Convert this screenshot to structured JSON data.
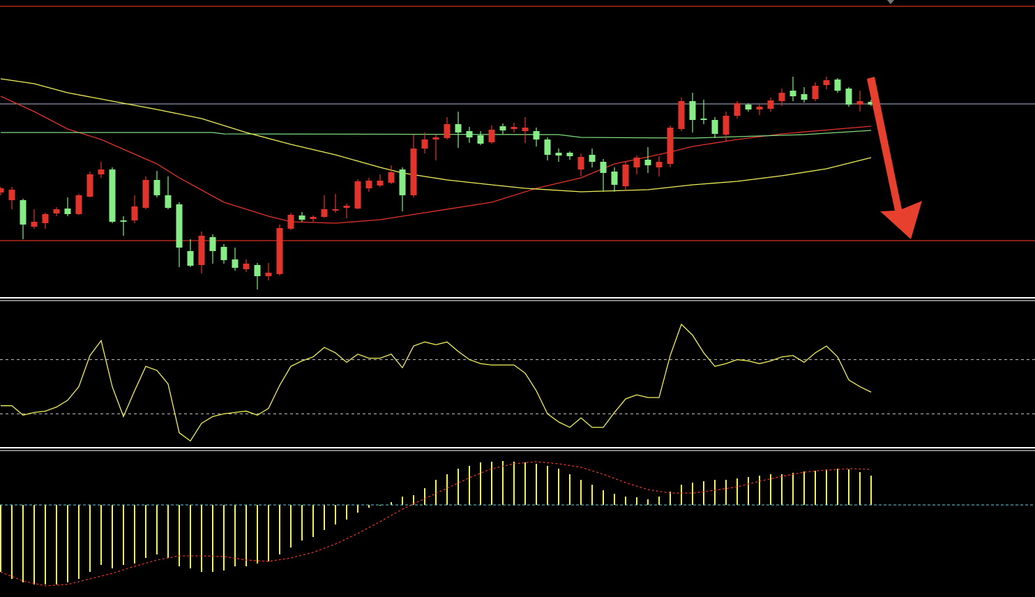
{
  "chart_data": [
    {
      "type": "candlestick",
      "up_color": "#e3342b",
      "down_color": "#86ec86",
      "ylim": [
        5,
        425
      ],
      "open": [
        154,
        143,
        143,
        105,
        110,
        124,
        131,
        123,
        148,
        180,
        187,
        114,
        114,
        132,
        172,
        150,
        137,
        70,
        50,
        90,
        76,
        58,
        44,
        50,
        34,
        37,
        102,
        121,
        116,
        119,
        128,
        132,
        131,
        160,
        164,
        168,
        187,
        150,
        217,
        230,
        232,
        252,
        242,
        236,
        226,
        249,
        245,
        242,
        242,
        230,
        211,
        211,
        187,
        208,
        198,
        184,
        163,
        190,
        201,
        190,
        195,
        245,
        285,
        260,
        258,
        237,
        264,
        280,
        273,
        274,
        285,
        300,
        295,
        288,
        308,
        316,
        303,
        280,
        284
      ],
      "high": [
        162,
        162,
        145,
        130,
        125,
        133,
        147,
        152,
        184,
        198,
        190,
        120,
        150,
        177,
        185,
        177,
        140,
        87,
        98,
        94,
        80,
        75,
        58,
        53,
        53,
        108,
        125,
        126,
        121,
        150,
        152,
        138,
        173,
        175,
        180,
        193,
        190,
        237,
        240,
        237,
        262,
        270,
        248,
        242,
        250,
        253,
        254,
        262,
        247,
        233,
        217,
        213,
        210,
        217,
        202,
        190,
        198,
        207,
        219,
        206,
        250,
        290,
        297,
        287,
        262,
        270,
        285,
        282,
        280,
        290,
        303,
        320,
        305,
        312,
        320,
        318,
        305,
        300,
        287
      ],
      "low": [
        150,
        130,
        87,
        102,
        102,
        120,
        120,
        122,
        147,
        175,
        110,
        92,
        110,
        130,
        147,
        130,
        47,
        47,
        38,
        52,
        52,
        42,
        40,
        15,
        28,
        35,
        100,
        112,
        112,
        118,
        125,
        117,
        130,
        155,
        162,
        166,
        127,
        147,
        210,
        200,
        230,
        218,
        225,
        222,
        224,
        238,
        240,
        225,
        220,
        200,
        198,
        201,
        177,
        190,
        155,
        155,
        157,
        180,
        182,
        177,
        190,
        242,
        240,
        252,
        232,
        227,
        260,
        270,
        265,
        270,
        278,
        285,
        283,
        285,
        302,
        297,
        277,
        270,
        278
      ],
      "close": [
        160,
        158,
        108,
        112,
        123,
        130,
        123,
        150,
        180,
        187,
        112,
        112,
        134,
        172,
        150,
        132,
        75,
        49,
        92,
        70,
        57,
        46,
        52,
        34,
        39,
        103,
        122,
        115,
        119,
        130,
        130,
        135,
        170,
        171,
        171,
        183,
        150,
        217,
        230,
        233,
        252,
        240,
        233,
        224,
        244,
        243,
        248,
        247,
        230,
        208,
        207,
        206,
        205,
        198,
        182,
        165,
        194,
        204,
        193,
        198,
        247,
        285,
        258,
        258,
        238,
        264,
        282,
        273,
        277,
        286,
        297,
        292,
        287,
        307,
        315,
        300,
        280,
        285,
        280
      ],
      "hlines": [
        {
          "value": 421,
          "color": "#d9301f"
        },
        {
          "value": 281,
          "color": "#8c92a6"
        },
        {
          "value": 85,
          "color": "#d9301f"
        }
      ],
      "series": [
        {
          "color": "#e3342b",
          "x": [
            0,
            3,
            6,
            9,
            14,
            16,
            20,
            24,
            26,
            30,
            34,
            38,
            44,
            48,
            52,
            55,
            58,
            60,
            62,
            66,
            70,
            75,
            78
          ],
          "values": [
            292,
            270,
            245,
            230,
            195,
            175,
            140,
            120,
            112,
            110,
            115,
            125,
            140,
            160,
            175,
            195,
            205,
            212,
            220,
            230,
            238,
            245,
            249
          ]
        },
        {
          "color": "#7fdc7f",
          "x": [
            0,
            19,
            20,
            50,
            52,
            62,
            72,
            78
          ],
          "values": [
            240,
            240,
            238,
            237,
            233,
            232,
            237,
            243
          ]
        },
        {
          "color": "#f0f05a",
          "x": [
            0,
            3,
            6,
            10,
            14,
            18,
            22,
            26,
            30,
            34,
            36,
            40,
            44,
            47,
            52,
            58,
            62,
            66,
            70,
            74,
            78
          ],
          "values": [
            317,
            310,
            297,
            285,
            273,
            260,
            240,
            223,
            208,
            190,
            182,
            172,
            165,
            160,
            155,
            158,
            165,
            170,
            178,
            188,
            204
          ]
        }
      ]
    },
    {
      "type": "line",
      "color": "#f2f25a",
      "ylim": [
        6,
        113
      ],
      "levels": [
        70,
        30
      ],
      "level_color": "#c8c8c8",
      "values": [
        36,
        36,
        29,
        31,
        32,
        35,
        40,
        50,
        73,
        84,
        50,
        28,
        47,
        65,
        62,
        52,
        16,
        10,
        23,
        28,
        30,
        31,
        32,
        29,
        34,
        51,
        65,
        69,
        72,
        79,
        75,
        68,
        74,
        71,
        71,
        74,
        64,
        80,
        83,
        81,
        83,
        76,
        70,
        67,
        66,
        66,
        66,
        60,
        47,
        30,
        24,
        20,
        27,
        20,
        20,
        31,
        41,
        44,
        42,
        42,
        73,
        96,
        88,
        75,
        65,
        67,
        70,
        69,
        67,
        69,
        72,
        73,
        68,
        75,
        80,
        72,
        55,
        50,
        46
      ]
    },
    {
      "type": "macd",
      "color": "#f2f25a",
      "ylim": [
        -13.2,
        7.6
      ],
      "zero_color": "#5fd6e6",
      "values": [
        -9.6,
        -10.6,
        -11.1,
        -11.4,
        -11.4,
        -11.4,
        -11.1,
        -10.6,
        -9.6,
        -8.6,
        -9.1,
        -8.6,
        -8.4,
        -7.6,
        -7.1,
        -7.6,
        -8.8,
        -9.1,
        -9.6,
        -9.6,
        -9.4,
        -8.8,
        -8.8,
        -8.4,
        -8.1,
        -7.1,
        -6.1,
        -5.1,
        -4.6,
        -3.6,
        -2.8,
        -2.1,
        -1.1,
        -0.4,
        -0.1,
        0.4,
        1.2,
        1.4,
        2.4,
        3.6,
        4.4,
        5.2,
        5.6,
        6.1,
        6.2,
        6.3,
        6.2,
        6.1,
        5.9,
        5.6,
        5.2,
        4.4,
        3.6,
        2.9,
        2.1,
        1.6,
        1.2,
        1.1,
        0.8,
        1.2,
        1.9,
        2.9,
        3.2,
        3.4,
        3.6,
        3.6,
        3.8,
        4.0,
        4.2,
        4.4,
        4.4,
        4.6,
        4.8,
        4.9,
        5.1,
        5.2,
        5.1,
        4.7,
        4.2
      ],
      "signal": {
        "color": "#e3342b",
        "x": [
          0,
          2,
          4,
          6,
          8,
          10,
          12,
          14,
          16,
          18,
          20,
          22,
          24,
          26,
          28,
          30,
          32,
          34,
          36,
          38,
          40,
          42,
          44,
          46,
          48,
          50,
          52,
          54,
          56,
          58,
          60,
          62,
          64,
          66,
          68,
          70,
          72,
          74,
          76,
          78
        ],
        "values": [
          -9.6,
          -10.9,
          -11.6,
          -11.4,
          -10.6,
          -9.8,
          -8.8,
          -7.9,
          -7.3,
          -7.3,
          -7.4,
          -7.9,
          -8.1,
          -7.6,
          -6.8,
          -5.6,
          -4.1,
          -2.4,
          -0.6,
          0.9,
          2.4,
          3.9,
          5.2,
          5.9,
          6.2,
          5.9,
          5.4,
          4.4,
          3.2,
          2.2,
          1.7,
          1.7,
          2.1,
          2.6,
          3.4,
          4.1,
          4.7,
          5.0,
          5.2,
          5.1
        ]
      }
    }
  ]
}
